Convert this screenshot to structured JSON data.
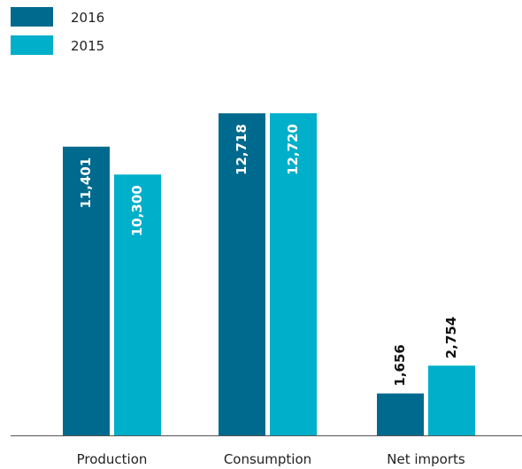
{
  "chart_data": {
    "type": "bar",
    "categories": [
      "Production",
      "Consumption",
      "Net imports"
    ],
    "series": [
      {
        "name": "2016",
        "color": "#006a8e",
        "values": [
          11401,
          12718,
          1656
        ],
        "value_labels": [
          "11,401",
          "12,718",
          "1,656"
        ]
      },
      {
        "name": "2015",
        "color": "#00afca",
        "values": [
          10300,
          12720,
          2754
        ],
        "value_labels": [
          "10,300",
          "12,720",
          "2,754"
        ]
      }
    ]
  }
}
